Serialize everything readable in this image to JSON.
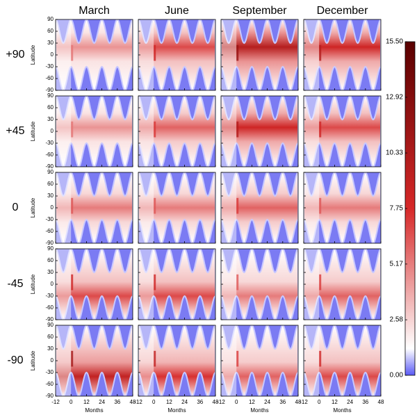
{
  "chart_data": {
    "type": "heatmap_grid",
    "columns": [
      "March",
      "June",
      "September",
      "December"
    ],
    "rows": [
      "+90",
      "+45",
      "0",
      "-45",
      "-90"
    ],
    "xlabel": "Months",
    "ylabel": "Latitude",
    "xlim": [
      -12,
      48
    ],
    "xticks": [
      -12,
      0,
      12,
      24,
      36,
      48
    ],
    "ylim": [
      -90,
      90
    ],
    "yticks": [
      90,
      60,
      30,
      0,
      -30,
      -60,
      -90
    ],
    "values": [
      [
        6,
        9,
        13,
        11
      ],
      [
        6,
        8,
        11,
        9
      ],
      [
        7,
        7,
        8,
        7
      ],
      [
        9,
        9,
        7,
        8
      ],
      [
        12,
        10,
        8,
        9
      ]
    ],
    "peak_latitude": [
      20,
      10,
      0,
      -30,
      -40
    ],
    "colorbar": {
      "lim": [
        0,
        15.5
      ],
      "ticks": [
        {
          "value": 0,
          "label": "0.00"
        },
        2.58,
        5.17,
        7.75,
        10.33,
        12.92,
        {
          "value": 15.5,
          "label": "15.50"
        }
      ]
    }
  }
}
